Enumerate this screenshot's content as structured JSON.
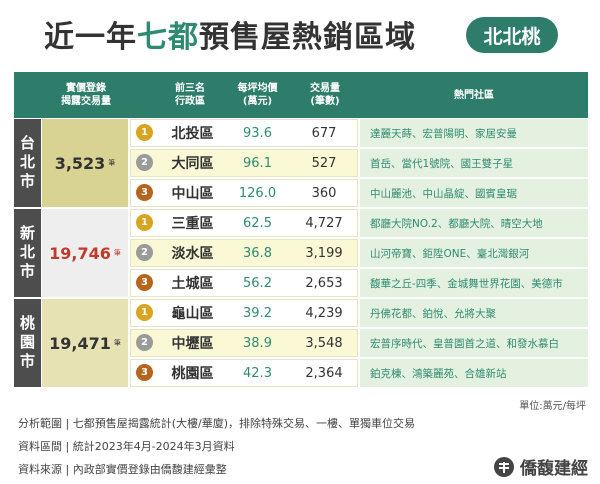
{
  "header": {
    "title": [
      "近一年",
      "七都",
      "預售屋熱銷區域"
    ],
    "badge": "北北桃"
  },
  "table": {
    "columns": [
      "實價登錄\n揭露交易量",
      "前三名\n行政區",
      "每坪均價\n(萬元)",
      "交易量\n(筆數)",
      "熱門社區"
    ],
    "groups": [
      {
        "city": "台北市",
        "volume": "3,523",
        "unit": "筆",
        "color": "#333333",
        "background": "#d9d393",
        "rows": [
          {
            "rank": "1",
            "district": "北投區",
            "price": "93.6",
            "count": "677",
            "communities": "達麗天蒔、宏普陽明、家居安曼"
          },
          {
            "rank": "2",
            "district": "大同區",
            "price": "96.1",
            "count": "527",
            "communities": "首岳、當代1號院、國王雙子星"
          },
          {
            "rank": "3",
            "district": "中山區",
            "price": "126.0",
            "count": "360",
            "communities": "中山麗池、中山晶綻、國賓皇琚"
          }
        ]
      },
      {
        "city": "新北市",
        "volume": "19,746",
        "unit": "筆",
        "color": "#c0392b",
        "background": "#eeeeee",
        "rows": [
          {
            "rank": "1",
            "district": "三重區",
            "price": "62.5",
            "count": "4,727",
            "communities": "都廳大院NO.2、都廳大院、晴空大地"
          },
          {
            "rank": "2",
            "district": "淡水區",
            "price": "36.8",
            "count": "3,199",
            "communities": "山河帝寶、鉅陞ONE、臺北灣銀河"
          },
          {
            "rank": "3",
            "district": "土城區",
            "price": "56.2",
            "count": "2,653",
            "communities": "馥華之丘-四季、金城舞世界花園、美德市"
          }
        ]
      },
      {
        "city": "桃園市",
        "volume": "19,471",
        "unit": "筆",
        "color": "#333333",
        "background": "#e6e2b4",
        "rows": [
          {
            "rank": "1",
            "district": "龜山區",
            "price": "39.2",
            "count": "4,239",
            "communities": "丹佛花都、鉑悅、允將大聚"
          },
          {
            "rank": "2",
            "district": "中壢區",
            "price": "38.9",
            "count": "3,548",
            "communities": "宏普序時代、皇普園首之道、和發水慕白"
          },
          {
            "rank": "3",
            "district": "桃園區",
            "price": "42.3",
            "count": "2,364",
            "communities": "鉑克棟、鴻築麗苑、合雄新站"
          }
        ]
      }
    ]
  },
  "unit_note": "單位:萬元/每坪",
  "footnotes": [
    "分析範圍 | 七都預售屋揭露統計(大樓/華廈)，排除特殊交易、一樓、單獨車位交易",
    "資料區間 | 統計2023年4月-2024年3月資料",
    "資料來源 | 內政部實價登錄由僑馥建經彙整"
  ],
  "logo": "僑馥建經"
}
